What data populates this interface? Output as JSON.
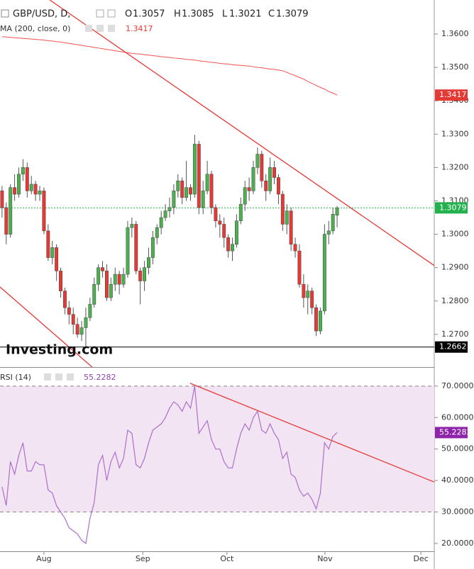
{
  "chart_data": {
    "type": "candlestick",
    "title": "GBP/USD, D,",
    "ohlc_labels": [
      "O",
      "H",
      "L",
      "C"
    ],
    "logo": "Investing.com",
    "xlim": [
      -0.49,
      103.2
    ],
    "xticks": [
      {
        "value": 10,
        "label": "Aug"
      },
      {
        "value": 33.6,
        "label": "Sep"
      },
      {
        "value": 53.7,
        "label": "Oct"
      },
      {
        "value": 77.1,
        "label": "Nov"
      },
      {
        "value": 100,
        "label": "Dec"
      }
    ],
    "ylim": [
      1.2602,
      1.3702
    ],
    "yticks": [
      {
        "value": 1.27,
        "label": "1.2700"
      },
      {
        "value": 1.28,
        "label": "1.2800"
      },
      {
        "value": 1.29,
        "label": "1.2900"
      },
      {
        "value": 1.3,
        "label": "1.3000"
      },
      {
        "value": 1.31,
        "label": "1.3100"
      },
      {
        "value": 1.32,
        "label": "1.3200"
      },
      {
        "value": 1.33,
        "label": "1.3300"
      },
      {
        "value": 1.34,
        "label": "1.3400"
      },
      {
        "value": 1.35,
        "label": "1.3500"
      },
      {
        "value": 1.36,
        "label": "1.3600"
      }
    ],
    "up_color": "#4caf50",
    "down_color": "#e53935",
    "open": [
      1.313,
      1.308,
      1.3,
      1.314,
      1.312,
      1.318,
      1.32,
      1.313,
      1.315,
      1.312,
      1.313,
      1.301,
      1.293,
      1.296,
      1.289,
      1.283,
      1.278,
      1.276,
      1.273,
      1.27,
      1.272,
      1.275,
      1.279,
      1.285,
      1.29,
      1.289,
      1.281,
      1.285,
      1.288,
      1.285,
      1.288,
      1.302,
      1.303,
      1.289,
      1.286,
      1.29,
      1.293,
      1.299,
      1.302,
      1.305,
      1.307,
      1.308,
      1.313,
      1.316,
      1.311,
      1.314,
      1.312,
      1.327,
      1.308,
      1.313,
      1.318,
      1.308,
      1.304,
      1.303,
      1.299,
      1.295,
      1.297,
      1.304,
      1.309,
      1.314,
      1.313,
      1.32,
      1.324,
      1.316,
      1.313,
      1.32,
      1.317,
      1.312,
      1.303,
      1.307,
      1.297,
      1.295,
      1.285,
      1.281,
      1.283,
      1.278,
      1.271,
      1.277,
      1.3,
      1.301,
      1.3057
    ],
    "high": [
      1.3145,
      1.3095,
      1.315,
      1.318,
      1.32,
      1.3225,
      1.3215,
      1.3175,
      1.316,
      1.3145,
      1.314,
      1.303,
      1.298,
      1.297,
      1.29,
      1.284,
      1.28,
      1.278,
      1.275,
      1.274,
      1.278,
      1.281,
      1.287,
      1.291,
      1.292,
      1.291,
      1.287,
      1.29,
      1.289,
      1.29,
      1.304,
      1.305,
      1.304,
      1.29,
      1.292,
      1.296,
      1.301,
      1.303,
      1.307,
      1.309,
      1.311,
      1.315,
      1.318,
      1.317,
      1.322,
      1.315,
      1.3298,
      1.328,
      1.316,
      1.322,
      1.319,
      1.309,
      1.306,
      1.305,
      1.3,
      1.299,
      1.306,
      1.311,
      1.316,
      1.317,
      1.322,
      1.326,
      1.325,
      1.318,
      1.323,
      1.322,
      1.318,
      1.313,
      1.309,
      1.308,
      1.299,
      1.297,
      1.288,
      1.285,
      1.284,
      1.279,
      1.278,
      1.303,
      1.304,
      1.308,
      1.3085
    ],
    "low": [
      1.305,
      1.297,
      1.299,
      1.31,
      1.311,
      1.316,
      1.311,
      1.312,
      1.31,
      1.31,
      1.3,
      1.292,
      1.291,
      1.286,
      1.281,
      1.276,
      1.273,
      1.27,
      1.269,
      1.268,
      1.2662,
      1.274,
      1.278,
      1.283,
      1.287,
      1.28,
      1.28,
      1.283,
      1.282,
      1.284,
      1.287,
      1.299,
      1.288,
      1.279,
      1.283,
      1.288,
      1.291,
      1.297,
      1.3,
      1.304,
      1.305,
      1.306,
      1.311,
      1.309,
      1.31,
      1.31,
      1.311,
      1.306,
      1.306,
      1.312,
      1.306,
      1.302,
      1.299,
      1.296,
      1.293,
      1.292,
      1.296,
      1.303,
      1.307,
      1.31,
      1.312,
      1.318,
      1.314,
      1.31,
      1.312,
      1.315,
      1.309,
      1.301,
      1.3,
      1.295,
      1.293,
      1.284,
      1.278,
      1.276,
      1.276,
      1.2695,
      1.27,
      1.276,
      1.297,
      1.3,
      1.3021
    ],
    "close": [
      1.308,
      1.3,
      1.314,
      1.312,
      1.318,
      1.32,
      1.313,
      1.315,
      1.312,
      1.313,
      1.301,
      1.293,
      1.296,
      1.289,
      1.283,
      1.278,
      1.276,
      1.273,
      1.27,
      1.272,
      1.275,
      1.279,
      1.285,
      1.29,
      1.289,
      1.281,
      1.285,
      1.288,
      1.285,
      1.288,
      1.302,
      1.303,
      1.289,
      1.286,
      1.29,
      1.293,
      1.299,
      1.302,
      1.305,
      1.307,
      1.308,
      1.313,
      1.316,
      1.311,
      1.314,
      1.312,
      1.327,
      1.308,
      1.313,
      1.318,
      1.308,
      1.304,
      1.303,
      1.299,
      1.295,
      1.297,
      1.304,
      1.309,
      1.314,
      1.313,
      1.32,
      1.324,
      1.316,
      1.313,
      1.32,
      1.317,
      1.312,
      1.303,
      1.307,
      1.297,
      1.295,
      1.285,
      1.281,
      1.283,
      1.278,
      1.271,
      1.277,
      1.3,
      1.301,
      1.306,
      1.3079
    ],
    "close_color": "#22b14c",
    "ma": {
      "name": "MA (200, close, 0)",
      "color": "#ef5350",
      "values": [
        1.3592,
        1.3591,
        1.359,
        1.3589,
        1.3588,
        1.3587,
        1.3586,
        1.3585,
        1.3584,
        1.3583,
        1.3582,
        1.358,
        1.3579,
        1.3577,
        1.3576,
        1.3574,
        1.3572,
        1.357,
        1.3568,
        1.3566,
        1.3564,
        1.3562,
        1.356,
        1.3558,
        1.3556,
        1.3554,
        1.3552,
        1.355,
        1.3548,
        1.3546,
        1.3544,
        1.3542,
        1.3541,
        1.354,
        1.3538,
        1.3537,
        1.3535,
        1.3534,
        1.3532,
        1.3531,
        1.353,
        1.3528,
        1.3527,
        1.3526,
        1.3524,
        1.3523,
        1.3522,
        1.352,
        1.3518,
        1.3517,
        1.3515,
        1.3514,
        1.3512,
        1.3511,
        1.351,
        1.3508,
        1.3507,
        1.3506,
        1.3505,
        1.3504,
        1.3502,
        1.35,
        1.3499,
        1.3497,
        1.3495,
        1.3494,
        1.3492,
        1.349,
        1.3485,
        1.348,
        1.3475,
        1.347,
        1.3465,
        1.3458,
        1.3452,
        1.3446,
        1.344,
        1.3435,
        1.3428,
        1.3423,
        1.3417
      ]
    },
    "trend_lines": [
      {
        "x": [
          11.4,
          103.2
        ],
        "y": [
          1.3702,
          1.2906
        ]
      },
      {
        "x": [
          -0.49,
          21.5
        ],
        "y": [
          1.2842,
          1.2602
        ]
      }
    ],
    "low_line": 1.2662,
    "rsi": {
      "name": "RSI (14)",
      "color": "#ab6fcc",
      "band_color": "#f3e4f3",
      "ylim": [
        17.5,
        75.6
      ],
      "yticks": [
        {
          "value": 20,
          "label": "20.0000"
        },
        {
          "value": 30,
          "label": "30.0000"
        },
        {
          "value": 40,
          "label": "40.0000"
        },
        {
          "value": 50,
          "label": "50.0000"
        },
        {
          "value": 60,
          "label": "60.0000"
        },
        {
          "value": 70,
          "label": "70.0000"
        }
      ],
      "bands": [
        30,
        70
      ],
      "values": [
        38,
        32,
        46,
        42,
        48,
        52,
        43,
        43,
        46,
        45,
        45,
        37,
        36,
        32,
        30,
        28,
        25,
        24,
        23,
        21,
        20,
        28,
        33,
        45,
        48,
        40,
        46,
        49,
        44,
        47,
        56,
        55,
        45,
        44,
        47,
        52,
        56,
        57,
        58,
        60,
        63,
        65,
        64,
        62,
        65,
        63,
        70,
        55,
        57,
        59,
        53,
        50,
        50,
        46,
        44,
        44,
        50,
        55,
        58,
        56,
        60,
        62,
        56,
        55,
        58,
        55,
        53,
        47,
        49,
        42,
        41,
        37,
        35,
        36,
        34,
        31,
        36,
        52,
        50,
        54,
        55.2282
      ],
      "trend_line": {
        "x": [
          44.9,
          103.2
        ],
        "y": [
          70.9,
          39.5
        ]
      }
    }
  }
}
